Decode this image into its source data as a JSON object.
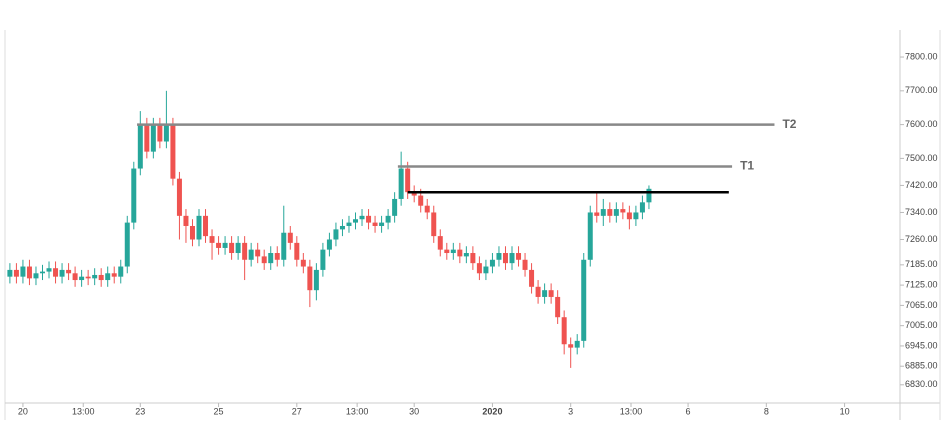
{
  "chart_data": {
    "type": "candlestick",
    "x": [
      -8,
      -4,
      0,
      4,
      8,
      12,
      16,
      20,
      24,
      28,
      32,
      36,
      40,
      44,
      48,
      52,
      56,
      60,
      64,
      68,
      72,
      76,
      80,
      84,
      88,
      92,
      96,
      100,
      104,
      108,
      112,
      116,
      120,
      124,
      128,
      132,
      136,
      140,
      144,
      148,
      152,
      156,
      160,
      164,
      168,
      172,
      176,
      180,
      184,
      188,
      192,
      196,
      200,
      204,
      208,
      212,
      216,
      220,
      224,
      228,
      232,
      236,
      240,
      244,
      248,
      252,
      256,
      260,
      264,
      268,
      272,
      276,
      280,
      284,
      288,
      292,
      296,
      300,
      304,
      308,
      312,
      316,
      320,
      324,
      328,
      332,
      336,
      340,
      344,
      348,
      352,
      356,
      360,
      364,
      368,
      372,
      376,
      380,
      384
    ],
    "open": [
      7150,
      7170,
      7150,
      7180,
      7145,
      7160,
      7165,
      7175,
      7150,
      7170,
      7160,
      7140,
      7150,
      7145,
      7155,
      7140,
      7160,
      7150,
      7180,
      7310,
      7470,
      7600,
      7520,
      7600,
      7550,
      7600,
      7440,
      7330,
      7300,
      7260,
      7330,
      7270,
      7250,
      7235,
      7250,
      7220,
      7250,
      7200,
      7230,
      7210,
      7190,
      7220,
      7200,
      7280,
      7250,
      7200,
      7180,
      7110,
      7170,
      7230,
      7260,
      7290,
      7300,
      7310,
      7320,
      7330,
      7310,
      7300,
      7310,
      7330,
      7380,
      7470,
      7400,
      7390,
      7360,
      7340,
      7270,
      7230,
      7220,
      7230,
      7210,
      7220,
      7190,
      7160,
      7180,
      7200,
      7220,
      7190,
      7220,
      7200,
      7170,
      7120,
      7090,
      7110,
      7090,
      7030,
      6950,
      6940,
      6960,
      7200,
      7340,
      7330,
      7350,
      7330,
      7350,
      7340,
      7320,
      7340,
      7370
    ],
    "high": [
      7190,
      7190,
      7200,
      7200,
      7180,
      7185,
      7195,
      7195,
      7190,
      7190,
      7180,
      7170,
      7170,
      7175,
      7175,
      7180,
      7180,
      7200,
      7330,
      7490,
      7640,
      7620,
      7620,
      7620,
      7700,
      7620,
      7460,
      7350,
      7320,
      7350,
      7350,
      7290,
      7270,
      7270,
      7270,
      7270,
      7270,
      7250,
      7250,
      7230,
      7240,
      7240,
      7360,
      7300,
      7270,
      7220,
      7200,
      7190,
      7250,
      7280,
      7310,
      7320,
      7330,
      7340,
      7350,
      7350,
      7330,
      7330,
      7350,
      7400,
      7520,
      7490,
      7420,
      7410,
      7380,
      7360,
      7290,
      7250,
      7250,
      7250,
      7240,
      7240,
      7210,
      7200,
      7220,
      7240,
      7240,
      7240,
      7240,
      7220,
      7190,
      7140,
      7130,
      7130,
      7110,
      7050,
      6970,
      6980,
      7220,
      7360,
      7400,
      7380,
      7370,
      7370,
      7370,
      7360,
      7360,
      7390,
      7420
    ],
    "low": [
      7130,
      7130,
      7130,
      7125,
      7125,
      7140,
      7145,
      7130,
      7130,
      7140,
      7120,
      7120,
      7125,
      7125,
      7120,
      7120,
      7130,
      7130,
      7160,
      7290,
      7450,
      7500,
      7500,
      7530,
      7530,
      7420,
      7260,
      7250,
      7240,
      7240,
      7250,
      7200,
      7215,
      7215,
      7200,
      7200,
      7140,
      7180,
      7190,
      7170,
      7170,
      7180,
      7180,
      7230,
      7180,
      7160,
      7060,
      7080,
      7150,
      7210,
      7240,
      7270,
      7280,
      7290,
      7300,
      7290,
      7280,
      7280,
      7290,
      7310,
      7360,
      7380,
      7370,
      7340,
      7320,
      7250,
      7210,
      7200,
      7200,
      7190,
      7190,
      7170,
      7140,
      7140,
      7160,
      7180,
      7170,
      7170,
      7180,
      7150,
      7100,
      7070,
      7070,
      7070,
      7010,
      6920,
      6880,
      6920,
      6940,
      7180,
      7310,
      7300,
      7310,
      7310,
      7320,
      7290,
      7300,
      7320,
      7350
    ],
    "close": [
      7170,
      7150,
      7180,
      7145,
      7160,
      7165,
      7175,
      7150,
      7170,
      7160,
      7140,
      7150,
      7145,
      7155,
      7140,
      7160,
      7150,
      7180,
      7310,
      7470,
      7600,
      7520,
      7600,
      7550,
      7600,
      7440,
      7330,
      7300,
      7260,
      7330,
      7270,
      7250,
      7235,
      7250,
      7220,
      7250,
      7200,
      7230,
      7210,
      7190,
      7220,
      7200,
      7280,
      7250,
      7200,
      7180,
      7110,
      7170,
      7230,
      7260,
      7290,
      7300,
      7310,
      7320,
      7330,
      7310,
      7300,
      7310,
      7330,
      7380,
      7470,
      7400,
      7390,
      7360,
      7340,
      7270,
      7230,
      7220,
      7230,
      7210,
      7220,
      7190,
      7160,
      7180,
      7200,
      7220,
      7190,
      7220,
      7200,
      7170,
      7120,
      7090,
      7110,
      7090,
      7030,
      6950,
      6940,
      6960,
      7200,
      7340,
      7330,
      7350,
      7330,
      7350,
      7340,
      7320,
      7340,
      7370,
      7410
    ],
    "up_color": "#26a69a",
    "down_color": "#ef5350",
    "xlim": [
      -11,
      538
    ],
    "xticks": [
      {
        "value": 0,
        "label": "20"
      },
      {
        "value": 37,
        "label": "13:00"
      },
      {
        "value": 72,
        "label": "23"
      },
      {
        "value": 120,
        "label": "25"
      },
      {
        "value": 168,
        "label": "27"
      },
      {
        "value": 205,
        "label": "13:00"
      },
      {
        "value": 240,
        "label": "30"
      },
      {
        "value": 288,
        "label": "2020",
        "bold": true
      },
      {
        "value": 336,
        "label": "3"
      },
      {
        "value": 373,
        "label": "13:00"
      },
      {
        "value": 408,
        "label": "6"
      },
      {
        "value": 456,
        "label": "8"
      },
      {
        "value": 504,
        "label": "10"
      }
    ],
    "ylim": [
      6785,
      7880
    ],
    "yticks": [
      {
        "value": 7800,
        "label": "7800.00"
      },
      {
        "value": 7700,
        "label": "7700.00"
      },
      {
        "value": 7600,
        "label": "7600.00"
      },
      {
        "value": 7500,
        "label": "7500.00"
      },
      {
        "value": 7420,
        "label": "7420.00"
      },
      {
        "value": 7340,
        "label": "7340.00"
      },
      {
        "value": 7260,
        "label": "7260.00"
      },
      {
        "value": 7185,
        "label": "7185.00"
      },
      {
        "value": 7125,
        "label": "7125.00"
      },
      {
        "value": 7065,
        "label": "7065.00"
      },
      {
        "value": 7005,
        "label": "7005.00"
      },
      {
        "value": 6945,
        "label": "6945.00"
      },
      {
        "value": 6885,
        "label": "6885.00"
      },
      {
        "value": 6830,
        "label": "6830.00"
      }
    ],
    "grid": false,
    "annotations": [
      {
        "label": "T2",
        "y": 7600,
        "x": [
          70,
          461
        ],
        "color": "#888888"
      },
      {
        "label": "T1",
        "y": 7476,
        "x": [
          230,
          435
        ],
        "color": "#888888"
      },
      {
        "y": 7400,
        "x": [
          236,
          433
        ],
        "color": "#000000"
      }
    ]
  }
}
